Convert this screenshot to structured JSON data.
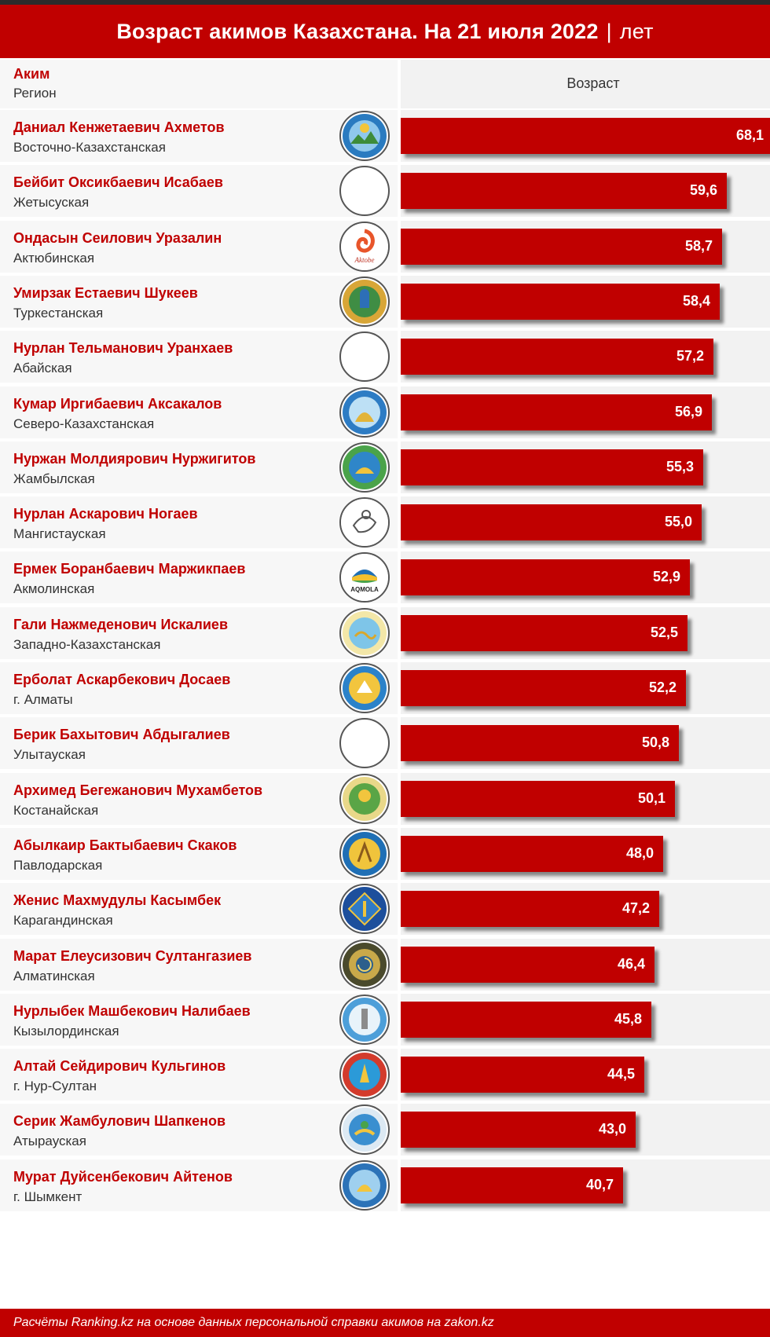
{
  "title": {
    "main": "Возраст акимов Казахстана. На 21 июля 2022",
    "separator": "|",
    "unit": "лет"
  },
  "header": {
    "akim_label": "Аким",
    "region_label": "Регион",
    "age_label": "Возраст"
  },
  "footer": {
    "note": "Расчёты Ranking.kz на основе данных персональной справки акимов на zakon.kz"
  },
  "colors": {
    "accent": "#c00000",
    "row_background": "#f7f7f7",
    "text": "#333333"
  },
  "chart_data": {
    "type": "bar",
    "orientation": "horizontal",
    "title": "Возраст акимов Казахстана. На 21 июля 2022 | лет",
    "xlim": [
      0,
      68.1
    ],
    "categories": [
      "Даниал Кенжетаевич Ахметов",
      "Бейбит Оксикбаевич Исабаев",
      "Ондасын Сеилович Уразалин",
      "Умирзак Естаевич Шукеев",
      "Нурлан Тельманович Уранхаев",
      "Кумар Иргибаевич Аксакалов",
      "Нуржан Молдиярович Нуржигитов",
      "Нурлан Аскарович Ногаев",
      "Ермек Боранбаевич Маржикпаев",
      "Гали Нажмеденович Искалиев",
      "Ерболат Аскарбекович Досаев",
      "Берик Бахытович Абдыгалиев",
      "Архимед Бегежанович Мухамбетов",
      "Абылкаир Бактыбаевич Скаков",
      "Женис Махмудулы Касымбек",
      "Марат Елеусизович Султангазиев",
      "Нурлыбек Машбекович Налибаев",
      "Алтай Сейдирович Кульгинов",
      "Серик Жамбулович Шапкенов",
      "Мурат Дуйсенбекович Айтенов"
    ],
    "regions": [
      "Восточно-Казахстанская",
      "Жетысуская",
      "Актюбинская",
      "Туркестанская",
      "Абайская",
      "Северо-Казахстанская",
      "Жамбылская",
      "Мангистауская",
      "Акмолинская",
      "Западно-Казахстанская",
      "г. Алматы",
      "Улытауская",
      "Костанайская",
      "Павлодарская",
      "Карагандинская",
      "Алматинская",
      "Кызылординская",
      "г. Нур-Султан",
      "Атырауская",
      "г. Шымкент"
    ],
    "values": [
      68.1,
      59.6,
      58.7,
      58.4,
      57.2,
      56.9,
      55.3,
      55.0,
      52.9,
      52.5,
      52.2,
      50.8,
      50.1,
      48.0,
      47.2,
      46.4,
      45.8,
      44.5,
      43.0,
      40.7
    ],
    "value_labels": [
      "68,1",
      "59,6",
      "58,7",
      "58,4",
      "57,2",
      "56,9",
      "55,3",
      "55,0",
      "52,9",
      "52,5",
      "52,2",
      "50,8",
      "50,1",
      "48,0",
      "47,2",
      "46,4",
      "45,8",
      "44,5",
      "43,0",
      "40,7"
    ],
    "emblems": [
      "vko-emblem",
      "blank-emblem",
      "aktobe-emblem",
      "turkestan-emblem",
      "blank-emblem",
      "sko-emblem",
      "zhambyl-emblem",
      "mangystau-emblem",
      "aqmola-emblem",
      "zko-emblem",
      "almaty-city-emblem",
      "blank-emblem",
      "kostanay-emblem",
      "pavlodar-emblem",
      "karaganda-emblem",
      "almaty-region-emblem",
      "kyzylorda-emblem",
      "nur-sultan-emblem",
      "atyrau-emblem",
      "shymkent-emblem"
    ],
    "emblem_text": {
      "aktobe-emblem": "Aktobe",
      "aqmola-emblem": "AQMOLA"
    }
  }
}
